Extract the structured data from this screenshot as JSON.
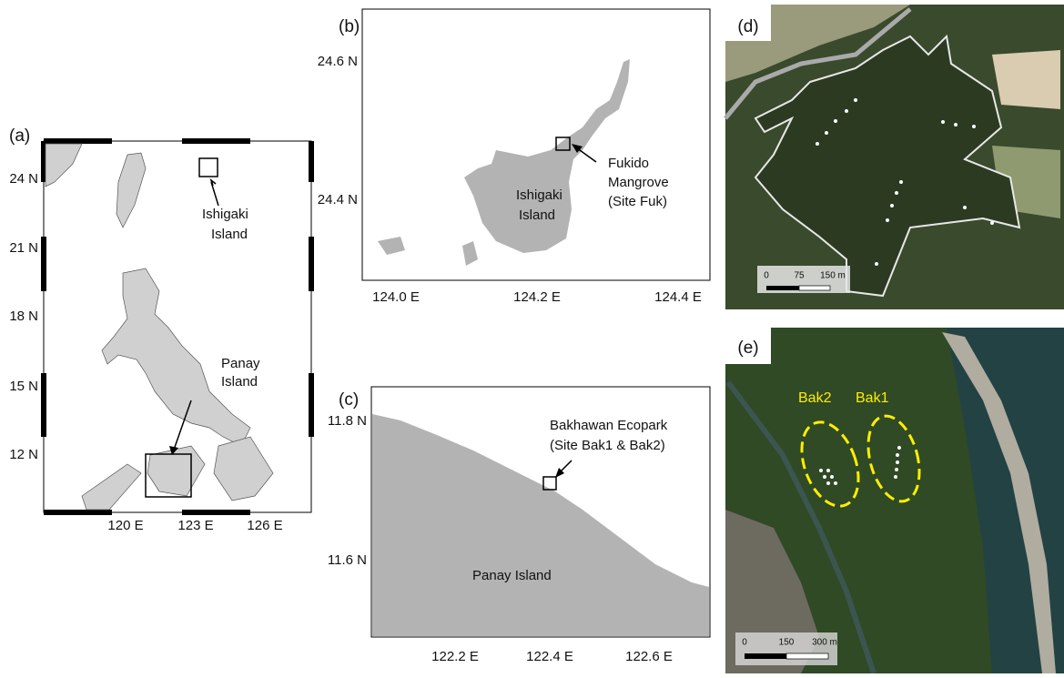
{
  "panels": {
    "a": {
      "label": "(a)",
      "y_labels": [
        "24 N",
        "21 N",
        "18 N",
        "15 N",
        "12 N"
      ],
      "x_labels": [
        "120 E",
        "123 E",
        "126 E"
      ],
      "annotations": [
        [
          "Ishigaki",
          "Island"
        ],
        [
          "Panay",
          "Island"
        ]
      ]
    },
    "b": {
      "label": "(b)",
      "y_labels": [
        "24.6 N",
        "24.4 N"
      ],
      "x_labels": [
        "124.0 E",
        "124.2 E",
        "124.4 E"
      ],
      "annotations": [
        [
          "Fukido",
          "Mangrove",
          "(Site Fuk)"
        ],
        [
          "Ishigaki",
          "Island"
        ]
      ]
    },
    "c": {
      "label": "(c)",
      "y_labels": [
        "11.8 N",
        "11.6 N"
      ],
      "x_labels": [
        "122.2 E",
        "122.4 E",
        "122.6 E"
      ],
      "annotations": [
        [
          "Bakhawan Ecopark",
          "(Site Bak1 & Bak2)"
        ],
        [
          "Panay Island"
        ]
      ]
    },
    "d": {
      "label": "(d)",
      "scale": [
        "0",
        "75",
        "150 m"
      ]
    },
    "e": {
      "label": "(e)",
      "sites": [
        "Bak2",
        "Bak1"
      ],
      "scale": [
        "0",
        "150",
        "300 m"
      ]
    }
  }
}
